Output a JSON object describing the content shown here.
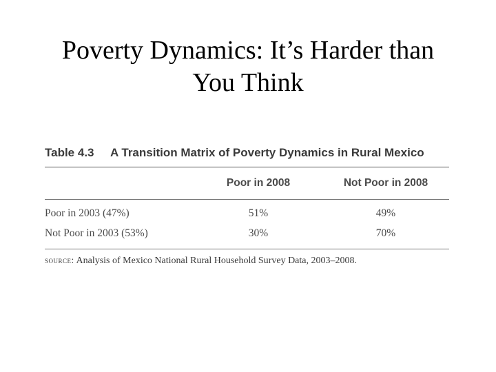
{
  "slide": {
    "title_line1": "Poverty Dynamics:  It’s Harder than",
    "title_line2": "You Think"
  },
  "table": {
    "number": "Table 4.3",
    "caption": "A Transition Matrix of Poverty Dynamics in Rural Mexico",
    "columns": [
      "Poor in 2008",
      "Not Poor in 2008"
    ],
    "rows": [
      {
        "label": "Poor in 2003 (47%)",
        "values": [
          "51%",
          "49%"
        ]
      },
      {
        "label": "Not Poor in 2003 (53%)",
        "values": [
          "30%",
          "70%"
        ]
      }
    ],
    "source_label": "source:",
    "source_text": "Analysis of Mexico National Rural Household Survey Data, 2003–2008."
  }
}
